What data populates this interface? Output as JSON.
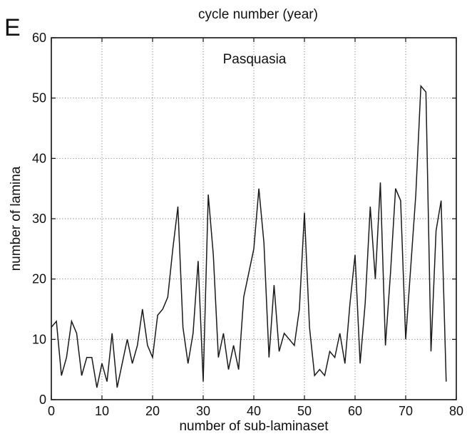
{
  "panel_letter": "E",
  "prev_panel_xlabel": "cycle number (year)",
  "chart_data": {
    "type": "line",
    "title": "",
    "annotation": "Pasquasia",
    "xlabel": "number of sub-laminaset",
    "ylabel": "number of lamina",
    "xlim": [
      0,
      80
    ],
    "ylim": [
      0,
      60
    ],
    "xticks": [
      0,
      10,
      20,
      30,
      40,
      50,
      60,
      70,
      80
    ],
    "yticks": [
      0,
      10,
      20,
      30,
      40,
      50,
      60
    ],
    "grid": true,
    "legend": "none",
    "line_color": "#1a1a1a",
    "x": [
      0,
      1,
      2,
      3,
      4,
      5,
      6,
      7,
      8,
      9,
      10,
      11,
      12,
      13,
      14,
      15,
      16,
      17,
      18,
      19,
      20,
      21,
      22,
      23,
      24,
      25,
      26,
      27,
      28,
      29,
      30,
      31,
      32,
      33,
      34,
      35,
      36,
      37,
      38,
      39,
      40,
      41,
      42,
      43,
      44,
      45,
      46,
      47,
      48,
      49,
      50,
      51,
      52,
      53,
      54,
      55,
      56,
      57,
      58,
      59,
      60,
      61,
      62,
      63,
      64,
      65,
      66,
      67,
      68,
      69,
      70,
      71,
      72,
      73,
      74,
      75,
      76,
      77,
      78
    ],
    "values": [
      12,
      13,
      4,
      7,
      13,
      11,
      4,
      7,
      7,
      2,
      6,
      3,
      11,
      2,
      6,
      10,
      6,
      9,
      15,
      9,
      7,
      14,
      15,
      17,
      25,
      32,
      12,
      6,
      11,
      23,
      3,
      34,
      24,
      7,
      11,
      5,
      9,
      5,
      17,
      21,
      25,
      35,
      26,
      7,
      19,
      8,
      11,
      10,
      9,
      15,
      31,
      12,
      4,
      5,
      4,
      8,
      7,
      11,
      6,
      16,
      24,
      6,
      16,
      32,
      20,
      36,
      9,
      21,
      35,
      33,
      10,
      22,
      34,
      52,
      51,
      8,
      28,
      33,
      3
    ]
  }
}
